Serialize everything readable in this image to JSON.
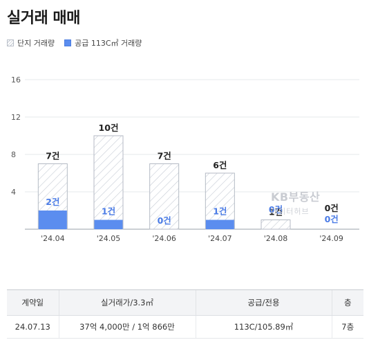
{
  "page": {
    "title": "실거래 매매"
  },
  "legend": {
    "complex_label": "단지 거래량",
    "supply_label": "공급 113C㎡ 거래량"
  },
  "colors": {
    "supply_bar": "#5b8def",
    "supply_text": "#4a7be6",
    "complex_border": "#b4bac4",
    "hatch_line": "#c6ccd5"
  },
  "chart_data": {
    "type": "bar",
    "categories": [
      "'24.04",
      "'24.05",
      "'24.06",
      "'24.07",
      "'24.08",
      "'24.09"
    ],
    "series": [
      {
        "name": "단지 거래량",
        "values": [
          7,
          10,
          7,
          6,
          1,
          0
        ],
        "labels": [
          "7건",
          "10건",
          "7건",
          "6건",
          "1건",
          "0건"
        ]
      },
      {
        "name": "공급 113C㎡ 거래량",
        "values": [
          2,
          1,
          0,
          1,
          0,
          0
        ],
        "labels": [
          "2건",
          "1건",
          "0건",
          "1건",
          "0건",
          "0건"
        ]
      }
    ],
    "yticks": [
      4,
      8,
      12,
      16
    ],
    "ylim": [
      0,
      16
    ],
    "grid": true,
    "legend_position": "top-left"
  },
  "watermark": {
    "brand": "KB부동산",
    "sub": "데이터허브"
  },
  "table": {
    "headers": [
      "계약일",
      "실거래가/3.3㎡",
      "공급/전용",
      "층"
    ],
    "rows": [
      [
        "24.07.13",
        "37억 4,000만 / 1억 866만",
        "113C/105.89㎡",
        "7층"
      ]
    ]
  }
}
